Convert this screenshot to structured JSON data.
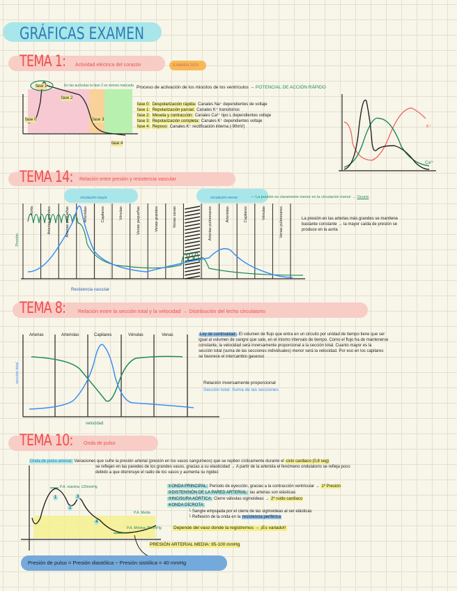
{
  "title": "GRÁFICAS EXAMEN",
  "tema1": {
    "heading": "TEMA 1:",
    "subtitle": "Actividad eléctrica del corazón",
    "badge": "EXAMEN 2023",
    "note": "En las aurículas la fase 2 es menos marcada",
    "description": "Proceso de activación de los miocitos de los ventrículos →",
    "highlight": "POTENCIAL DE ACCIÓN RÁPIDO",
    "phase_labels": [
      "fase 0",
      "fase 1",
      "fase 2",
      "fase 3",
      "fase 4"
    ],
    "phases": [
      {
        "label": "fase 0:",
        "title": "Despolarización rápida:",
        "text": "Canales Na⁺ dependientes de voltaje"
      },
      {
        "label": "fase 1:",
        "title": "Repolarización parcial:",
        "text": "Canales K⁺ transitorios"
      },
      {
        "label": "fase 2:",
        "title": "Meseta y contracción:",
        "text": "Canales Ca²⁺ tipo L dependientes voltaje"
      },
      {
        "label": "fase 3:",
        "title": "Repolarización completa:",
        "text": "Canales K⁺ dependientes voltaje"
      },
      {
        "label": "fase 4:",
        "title": "Reposo:",
        "text": "Canales K⁺ rectificación interna (-90mV)"
      }
    ],
    "ion_labels": [
      "K⁺",
      "Ca²⁺"
    ],
    "colors": {
      "pink": "#f6c9d3",
      "orange": "#f9d29a",
      "green": "#b8f0b0",
      "badge": "#f7b955"
    }
  },
  "tema14": {
    "heading": "TEMA 14:",
    "subtitle": "Relación entre presión y resistencia vascular",
    "pill_left": "circulación mayor",
    "pill_right": "circulación menor",
    "note": "La presión es claramente menor en la circulación menor →",
    "note_end": "Ocurre",
    "columns": [
      "Aorta",
      "Arterias grandes",
      "Arterias pequeñas",
      "Arteriolas",
      "Capilares",
      "Vénulas",
      "Venas pequeñas",
      "Venas grandes",
      "Venas cavas",
      "",
      "Arterias pulmonares",
      "Arteriolas",
      "Capilares",
      "Vénulas",
      "Venas pulmonares"
    ],
    "ylabel": "Presión",
    "xlabel": "Resistencia vascular",
    "side_text": [
      "La presión en las arterias más grandes se mantiene",
      "bastante constante → la mayor caída de presión se",
      "produce en la aorta"
    ]
  },
  "tema8": {
    "heading": "TEMA 8:",
    "subtitle": "Relación entre la sección total y la velocidad → Distribución del lecho circulatorio",
    "columns": [
      "Arterias",
      "Arteriolas",
      "Capilares",
      "Vénulas",
      "Venas"
    ],
    "ylabel": "sección total",
    "xlabel": "velocidad",
    "law_title": "Ley de continuidad:",
    "law_lines": [
      "El volumen de flujo que entra en un circuito por unidad de tiempo tiene que ser",
      "igual al volumen de sangre que sale, en el mismo intervalo de tiempo. Como el flujo ha de mantenerse",
      "constante, la velocidad será inversamente proporcional a la sección total. Cuanto mayor es la",
      "sección total (suma de las secciones individuales) menor será la velocidad. Por eso en los capilares",
      "se favorece el intercambio gaseoso"
    ],
    "relation": "Relación inversamente proporcional",
    "section_def": "Sección total: Suma de las secciones"
  },
  "tema10": {
    "heading": "TEMA 10:",
    "subtitle": "Onda de pulso",
    "def_title": "Onda de pulso arterial:",
    "def_lines": [
      "Variaciones que sufre la presión arterial (presión en los vasos sanguíneos) que se repiten cíclicamente durante el",
      "se reflejan en las paredes de los grandes vasos, gracias a su elasticidad → A partir de la arteriola el fenómeno ondulatorio se refleja poco",
      "debido a que disminuye el radio de los vasos y aumenta su rigidez"
    ],
    "cycle": "ciclo cardiaco (0,8 seg)",
    "pa_max": "P.A. máxima: 120mmHg",
    "pa_media": "P.A. Media",
    "pa_min": "P.A. Mínima: 80mmHg",
    "numbers": [
      "1",
      "2",
      "3",
      "4"
    ],
    "items": [
      {
        "title": "①ONDA PRINCIPAL:",
        "text": "Período de eyección, gracias a la contracción ventricular →",
        "hl": "1ª Presión"
      },
      {
        "title": "②DISTENSIÓN DE LA PARED ARTERIAL:",
        "text": "las arterias son elásticas",
        "hl": ""
      },
      {
        "title": "③INCISURA AÓRTICA:",
        "text": "Cierre válvulas sigmoideas →",
        "hl": "2º ruido cardíaco"
      },
      {
        "title": "④ONDA DÍCROTA:",
        "text": "",
        "hl": ""
      }
    ],
    "sub_items": [
      "Sangre empujada por el cierre de las sigmoideas al ser elásticas",
      "Reflexión de la onda en la"
    ],
    "sub_hl": "resistencia periférica",
    "depends": "Depende del vaso donde la registremos → ¡Es variado!!",
    "pam": "PRESIÓN ARTERIAL MEDIA: 95-100 mmHg",
    "pulse_pressure": "Presión de pulso = Presión diastólica − Presión sistólica = 40 mmHg"
  }
}
